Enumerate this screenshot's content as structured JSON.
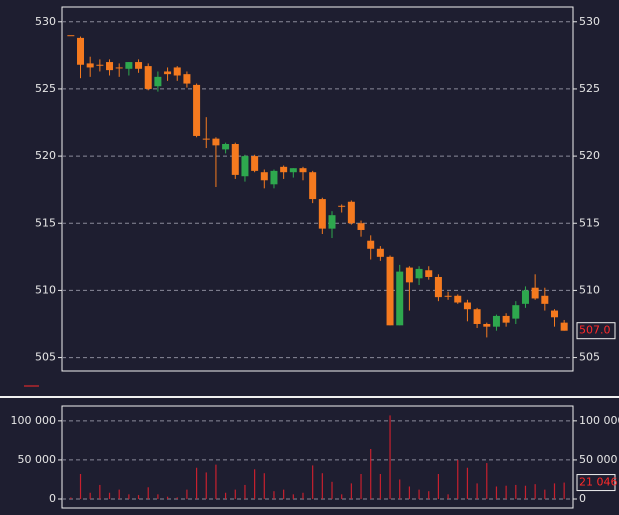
{
  "chart_data": [
    {
      "type": "candlestick",
      "up_color": "#2ea84e",
      "down_color": "#f57a1f",
      "ylim": [
        504,
        531.1
      ],
      "yticks": [
        505,
        510,
        515,
        520,
        525,
        530
      ],
      "grid": true,
      "last_value": {
        "value": 507,
        "label": "507.0"
      },
      "last_color": "#ff2a2a",
      "open": [
        529,
        528.8,
        526.9,
        526.8,
        527.0,
        526.6,
        526.5,
        527.0,
        526.7,
        525.2,
        526.3,
        526.6,
        526.1,
        525.3,
        521.3,
        521.3,
        520.5,
        520.9,
        518.5,
        520.0,
        518.8,
        517.9,
        519.2,
        518.8,
        519.1,
        518.8,
        516.8,
        514.6,
        516.3,
        516.6,
        515.0,
        513.7,
        513.1,
        512.5,
        507.4,
        511.7,
        510.9,
        511.5,
        511.0,
        509.6,
        509.6,
        509.1,
        508.6,
        507.5,
        507.3,
        508.1,
        507.9,
        509.0,
        510.2,
        509.6,
        508.5,
        507.6
      ],
      "high": [
        529,
        528.9,
        527.4,
        527.2,
        527.2,
        526.9,
        527.0,
        527.2,
        526.9,
        526.3,
        526.6,
        526.7,
        526.3,
        525.4,
        522.9,
        521.4,
        521.0,
        521.0,
        520.1,
        520.1,
        519.0,
        519.0,
        519.3,
        519.1,
        519.2,
        518.9,
        516.9,
        515.9,
        516.4,
        516.7,
        515.2,
        514.1,
        513.3,
        512.6,
        511.9,
        511.8,
        511.8,
        511.8,
        511.2,
        509.9,
        509.7,
        509.3,
        508.7,
        507.6,
        508.2,
        508.3,
        509.2,
        510.3,
        511.2,
        510.2,
        508.6,
        507.8
      ],
      "low": [
        529,
        525.8,
        525.9,
        526.3,
        526.0,
        525.9,
        526.0,
        526.2,
        524.9,
        524.8,
        525.6,
        525.6,
        525.1,
        521.4,
        520.6,
        517.7,
        520.2,
        518.3,
        518.1,
        518.8,
        517.6,
        517.6,
        518.3,
        518.4,
        518.2,
        516.5,
        514.2,
        513.9,
        515.8,
        514.9,
        514.0,
        512.3,
        512.2,
        507.4,
        507.4,
        508.5,
        510.4,
        510.8,
        509.2,
        509.3,
        509.0,
        507.7,
        507.2,
        506.5,
        507.0,
        507.3,
        507.5,
        508.7,
        509.3,
        508.5,
        507.3,
        507.0
      ],
      "close": [
        529,
        526.8,
        526.6,
        526.8,
        526.4,
        526.6,
        527.0,
        526.5,
        525.0,
        525.9,
        526.1,
        526.0,
        525.4,
        521.5,
        521.3,
        520.8,
        520.9,
        518.6,
        520.0,
        518.9,
        518.2,
        518.9,
        518.8,
        519.1,
        518.8,
        516.8,
        514.6,
        515.6,
        516.3,
        515.0,
        514.5,
        513.1,
        512.5,
        507.4,
        511.4,
        510.6,
        511.6,
        511.0,
        509.5,
        509.6,
        509.1,
        508.6,
        507.5,
        507.3,
        508.1,
        507.6,
        508.9,
        510.0,
        509.4,
        509.0,
        508.0,
        507.0
      ]
    },
    {
      "type": "bar",
      "color": "#c8202e",
      "ylim": [
        -11500,
        119000
      ],
      "yticks": [
        {
          "value": 0,
          "label": "0"
        },
        {
          "value": 50000,
          "label": "50 000"
        },
        {
          "value": 100000,
          "label": "100 000"
        }
      ],
      "grid": true,
      "last_value": {
        "value": 21046,
        "label": "21 046"
      },
      "last_color": "#ff2a2a",
      "values": [
        2000,
        32000,
        8000,
        18000,
        8000,
        12000,
        6000,
        5000,
        15000,
        6000,
        3000,
        2000,
        12000,
        40000,
        34000,
        44000,
        8000,
        12000,
        18000,
        38000,
        33000,
        10000,
        12000,
        6000,
        8000,
        43000,
        33000,
        22000,
        6000,
        20000,
        32000,
        64000,
        32000,
        107000,
        25000,
        16000,
        12000,
        10000,
        32000,
        6000,
        50000,
        40000,
        20000,
        46000,
        16000,
        17000,
        18000,
        17000,
        19000,
        12000,
        20000,
        21046
      ]
    }
  ]
}
